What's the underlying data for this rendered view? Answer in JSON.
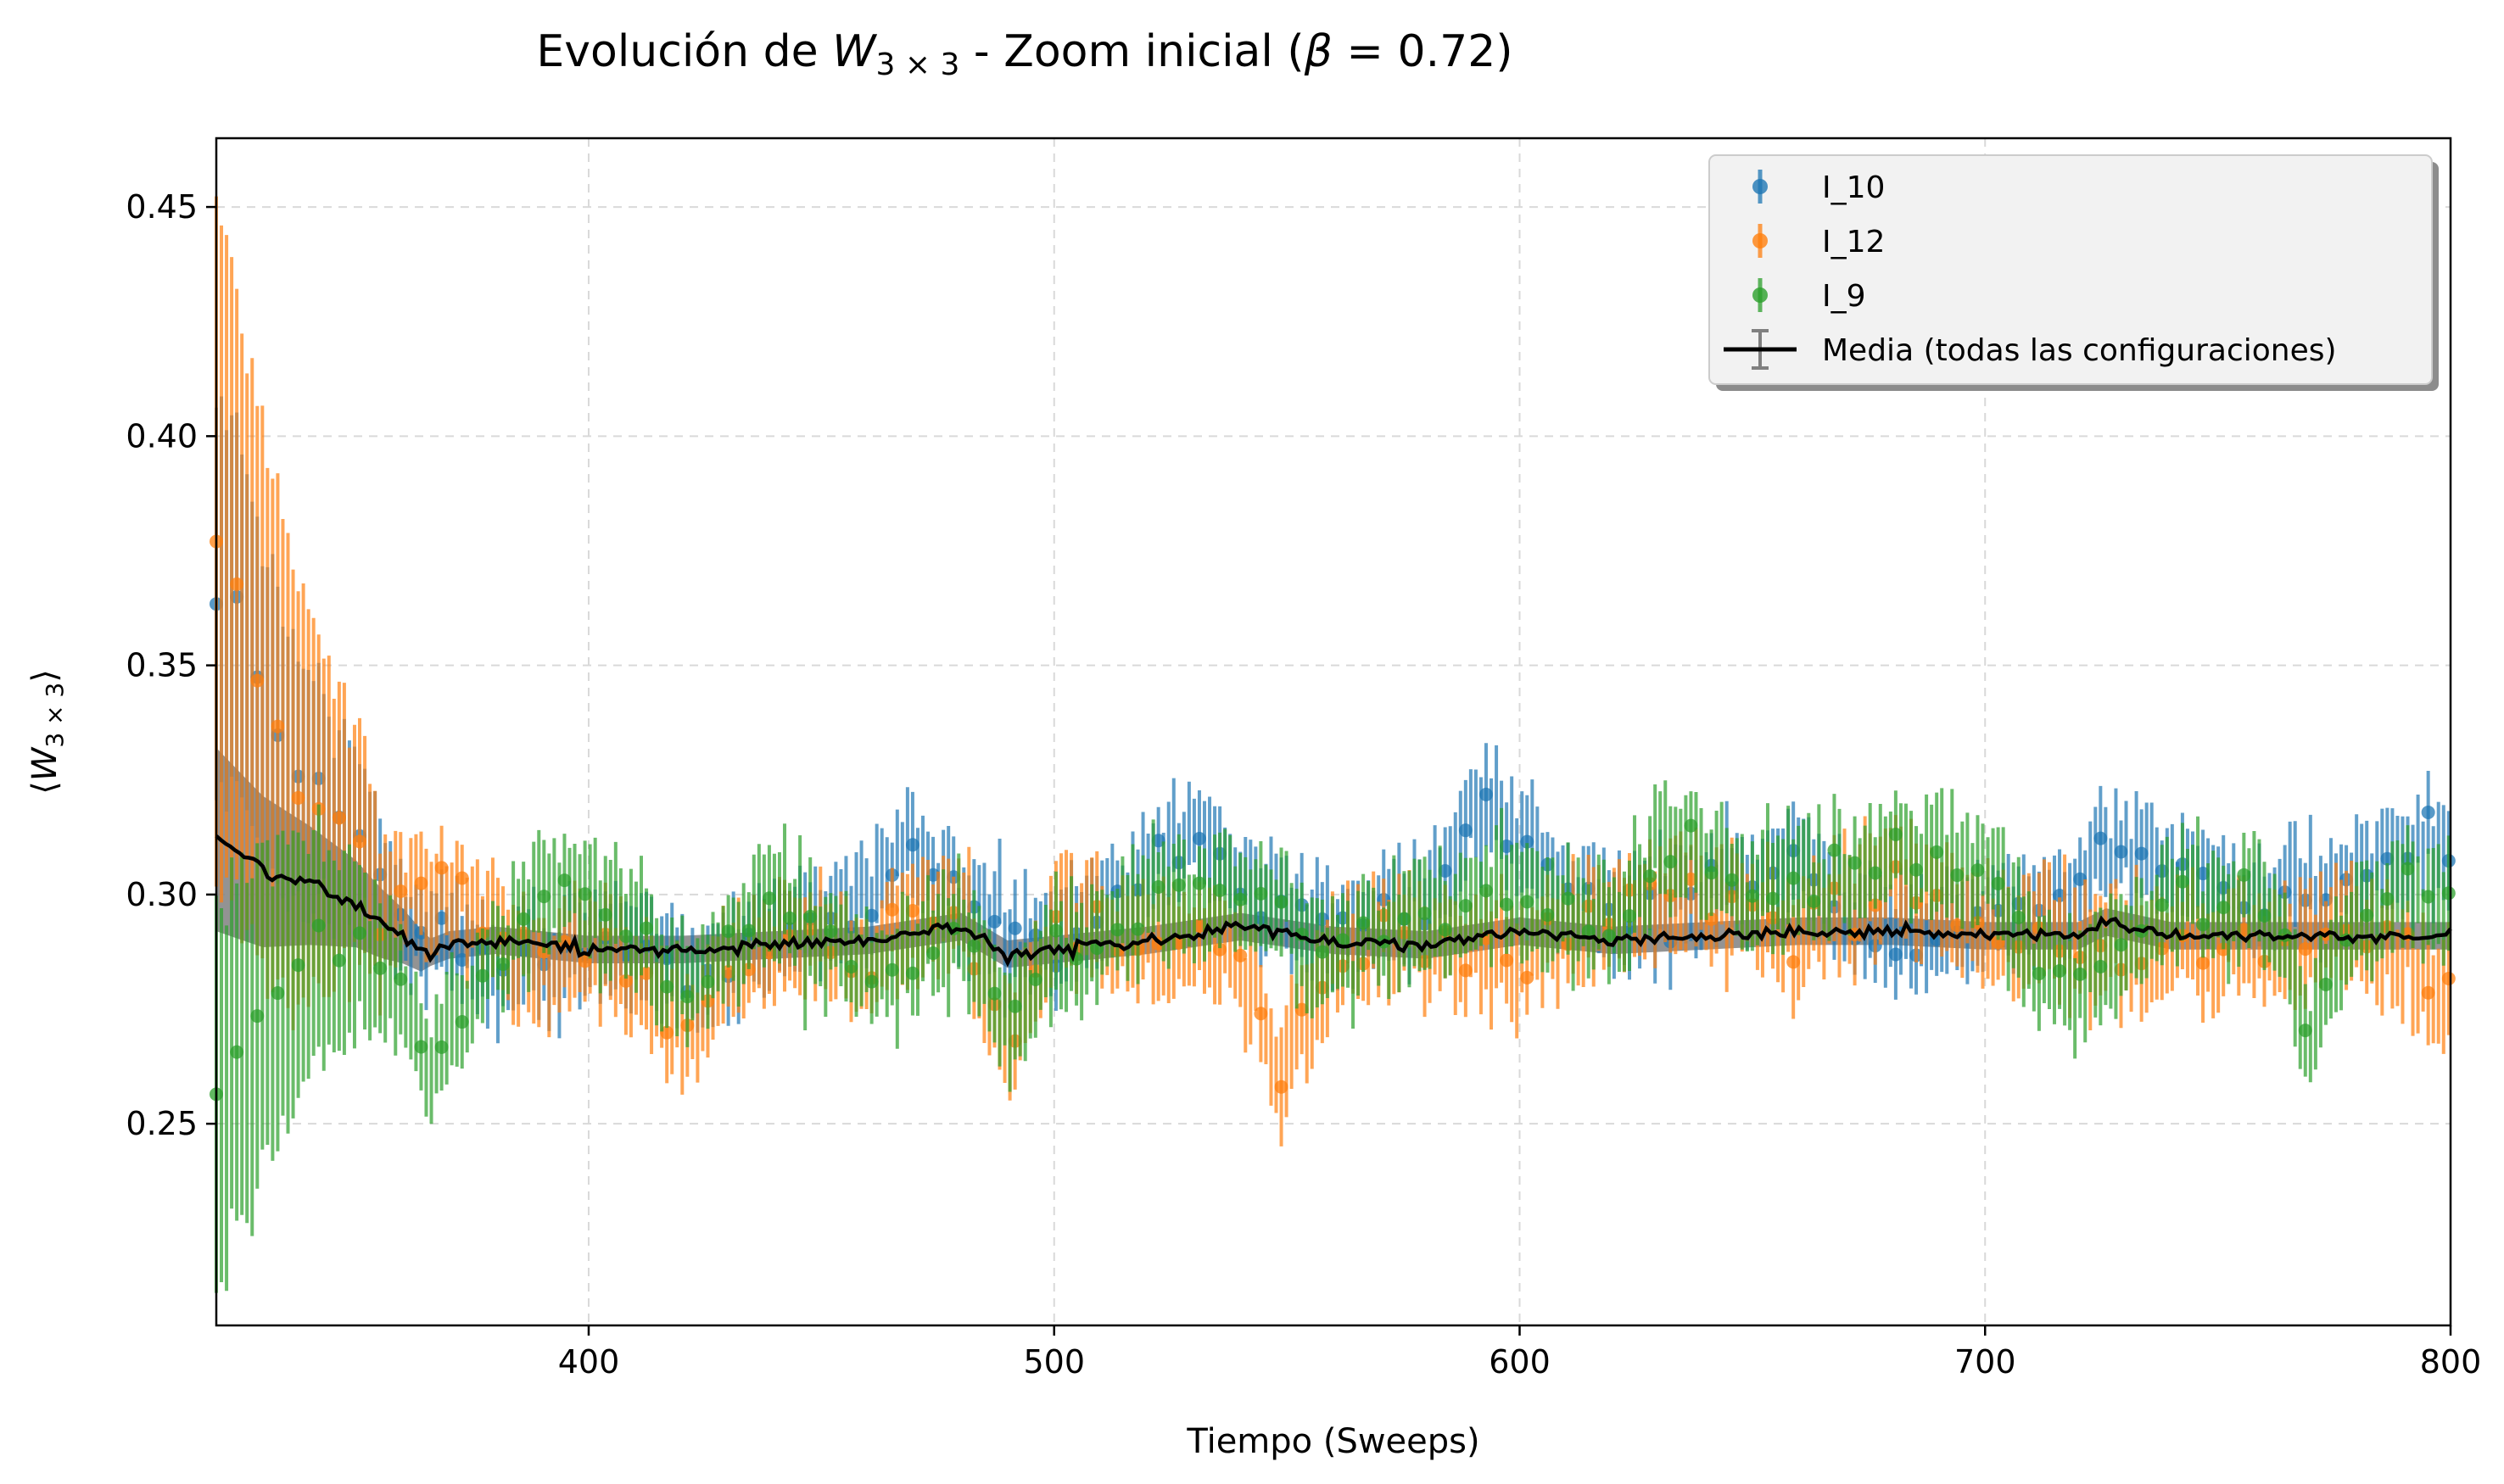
{
  "chart_data": {
    "type": "scatter",
    "title_prefix": "Evolución de ",
    "title_w": "W",
    "title_sub": "3 × 3",
    "title_mid": " - Zoom inicial (",
    "title_beta": "β",
    "title_suffix": " = 0.72)",
    "xlabel": "Tiempo (Sweeps)",
    "ylabel_w": "W",
    "ylabel_sub": "3 × 3",
    "xlim": [
      320,
      800
    ],
    "ylim": [
      0.206,
      0.465
    ],
    "xticks": [
      400,
      500,
      600,
      700,
      800
    ],
    "yticks": [
      0.25,
      0.3,
      0.35,
      0.4,
      0.45
    ],
    "xtick_labels": [
      "400",
      "500",
      "600",
      "700",
      "800"
    ],
    "ytick_labels": [
      "0.25",
      "0.30",
      "0.35",
      "0.40",
      "0.45"
    ],
    "grid": true,
    "legend_position": "top-right",
    "legend": [
      "I_10",
      "I_12",
      "I_9",
      "Media (todas las configuraciones)"
    ],
    "colors": {
      "I_10": "#1f77b4",
      "I_12": "#ff7f0e",
      "I_9": "#2ca02c",
      "mean": "#000000",
      "mean_error": "#808080"
    },
    "series": [
      {
        "name": "I_10",
        "x": [
          320,
          325,
          330,
          335,
          340,
          345,
          350,
          355,
          360,
          370,
          380,
          400,
          420,
          440,
          460,
          470,
          480,
          500,
          520,
          530,
          540,
          560,
          580,
          594,
          600,
          620,
          640,
          660,
          680,
          700,
          720,
          730,
          740,
          760,
          780,
          800
        ],
        "values": [
          0.368,
          0.36,
          0.345,
          0.33,
          0.322,
          0.318,
          0.312,
          0.305,
          0.295,
          0.29,
          0.283,
          0.29,
          0.283,
          0.291,
          0.3,
          0.312,
          0.295,
          0.287,
          0.305,
          0.316,
          0.302,
          0.291,
          0.3,
          0.321,
          0.308,
          0.296,
          0.301,
          0.306,
          0.29,
          0.295,
          0.3,
          0.312,
          0.305,
          0.295,
          0.306,
          0.31
        ]
      },
      {
        "name": "I_12",
        "x": [
          320,
          325,
          330,
          335,
          340,
          345,
          350,
          355,
          360,
          370,
          380,
          390,
          400,
          420,
          440,
          460,
          480,
          490,
          500,
          520,
          540,
          548,
          560,
          580,
          600,
          620,
          640,
          660,
          680,
          700,
          720,
          740,
          760,
          780,
          800
        ],
        "values": [
          0.375,
          0.36,
          0.34,
          0.33,
          0.32,
          0.315,
          0.307,
          0.3,
          0.298,
          0.3,
          0.293,
          0.281,
          0.29,
          0.27,
          0.292,
          0.287,
          0.3,
          0.265,
          0.295,
          0.29,
          0.288,
          0.262,
          0.287,
          0.291,
          0.285,
          0.296,
          0.301,
          0.29,
          0.305,
          0.292,
          0.289,
          0.29,
          0.289,
          0.292,
          0.28
        ]
      },
      {
        "name": "I_9",
        "x": [
          320,
          325,
          330,
          335,
          340,
          345,
          350,
          355,
          360,
          365,
          370,
          380,
          390,
          400,
          420,
          440,
          460,
          480,
          490,
          500,
          520,
          540,
          560,
          580,
          600,
          620,
          635,
          640,
          660,
          680,
          700,
          710,
          720,
          740,
          760,
          770,
          780,
          800
        ],
        "values": [
          0.255,
          0.268,
          0.275,
          0.28,
          0.285,
          0.288,
          0.29,
          0.285,
          0.279,
          0.265,
          0.27,
          0.285,
          0.3,
          0.302,
          0.28,
          0.298,
          0.285,
          0.29,
          0.275,
          0.286,
          0.298,
          0.3,
          0.285,
          0.295,
          0.3,
          0.293,
          0.316,
          0.305,
          0.302,
          0.31,
          0.306,
          0.285,
          0.28,
          0.298,
          0.3,
          0.27,
          0.295,
          0.302
        ]
      },
      {
        "name": "Media (todas las configuraciones)",
        "x": [
          320,
          330,
          340,
          350,
          355,
          360,
          365,
          370,
          380,
          390,
          400,
          420,
          440,
          460,
          480,
          490,
          500,
          520,
          540,
          560,
          580,
          600,
          620,
          640,
          660,
          680,
          700,
          720,
          726,
          740,
          760,
          780,
          800
        ],
        "values": [
          0.312,
          0.305,
          0.302,
          0.298,
          0.294,
          0.291,
          0.287,
          0.289,
          0.29,
          0.289,
          0.288,
          0.288,
          0.289,
          0.29,
          0.293,
          0.287,
          0.288,
          0.29,
          0.293,
          0.29,
          0.289,
          0.292,
          0.29,
          0.291,
          0.292,
          0.292,
          0.291,
          0.291,
          0.294,
          0.291,
          0.291,
          0.291,
          0.291
        ]
      }
    ]
  }
}
